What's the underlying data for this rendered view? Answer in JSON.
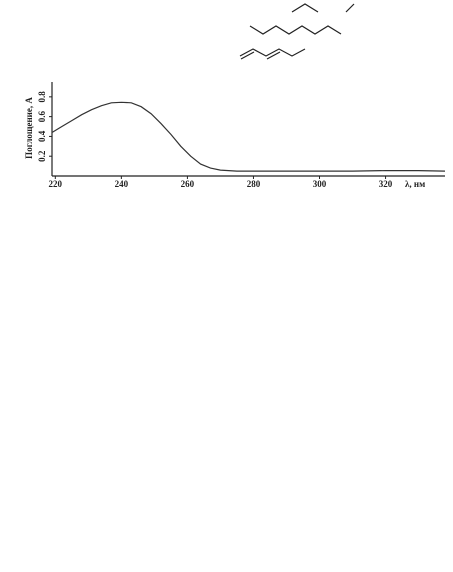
{
  "chart_data": {
    "type": "line",
    "ylabel": "Поглощение, А",
    "xlabel": "λ, нм",
    "x": [
      219,
      222,
      225,
      228,
      231,
      234,
      237,
      240,
      243,
      246,
      249,
      252,
      255,
      258,
      261,
      264,
      267,
      270,
      275,
      280,
      290,
      300,
      310,
      320,
      330,
      338
    ],
    "series": [
      {
        "name": null,
        "color": "#333333",
        "values": [
          0.44,
          0.5,
          0.56,
          0.62,
          0.67,
          0.71,
          0.74,
          0.745,
          0.74,
          0.7,
          0.63,
          0.53,
          0.42,
          0.3,
          0.2,
          0.12,
          0.08,
          0.06,
          0.05,
          0.05,
          0.05,
          0.05,
          0.05,
          0.055,
          0.055,
          0.05
        ]
      }
    ],
    "xlim": [
      219,
      338
    ],
    "xticks": [
      220,
      240,
      260,
      280,
      300,
      320
    ],
    "ylim": [
      0,
      0.95
    ],
    "yticks": [
      0.2,
      0.4,
      0.6,
      0.8
    ]
  }
}
